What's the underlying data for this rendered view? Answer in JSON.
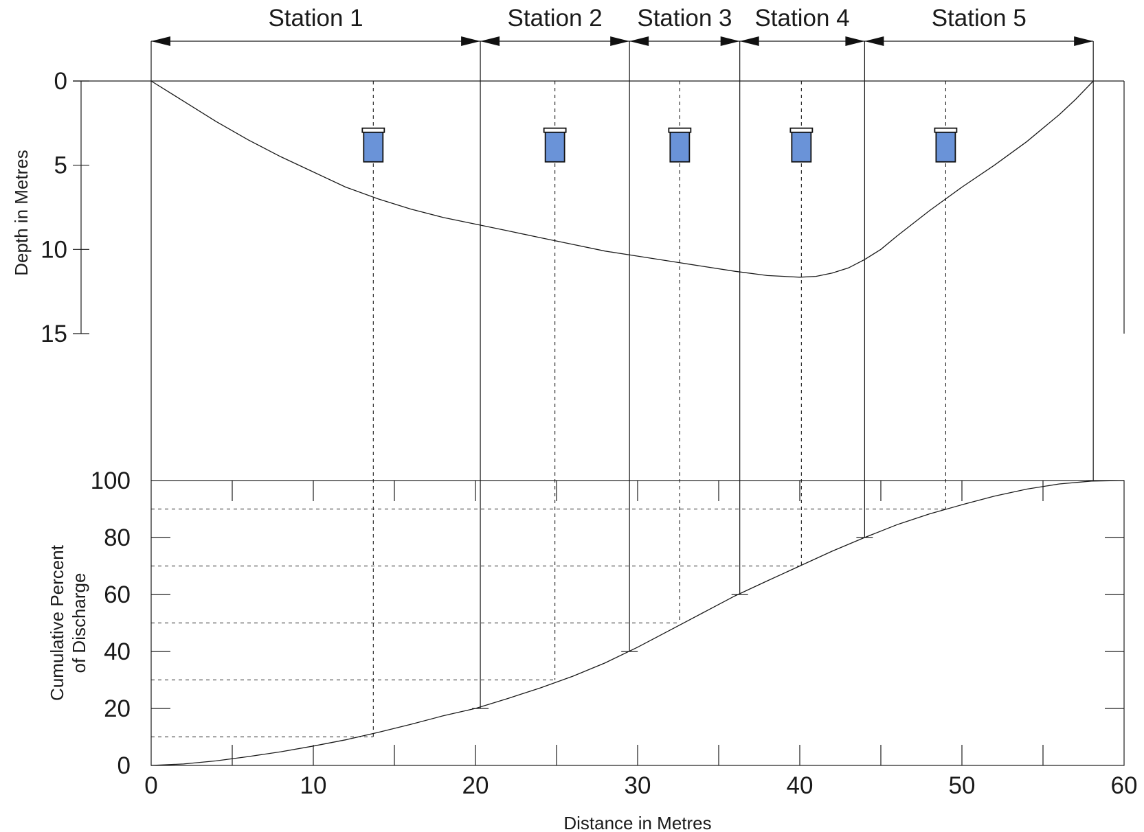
{
  "chart_data": [
    {
      "type": "line",
      "panel": "cross-section",
      "ylabel": "Depth in Metres",
      "yticks": [
        0,
        5,
        10,
        15
      ],
      "ylim": [
        0,
        15
      ],
      "y_inverted": true,
      "xlim": [
        0,
        60
      ],
      "stations": [
        {
          "label": "Station 1",
          "start": 0,
          "end": 20.3,
          "sample_x": 13.7
        },
        {
          "label": "Station 2",
          "start": 20.3,
          "end": 29.5,
          "sample_x": 24.9
        },
        {
          "label": "Station 3",
          "start": 29.5,
          "end": 36.3,
          "sample_x": 32.6
        },
        {
          "label": "Station 4",
          "start": 36.3,
          "end": 44.0,
          "sample_x": 40.1
        },
        {
          "label": "Station 5",
          "start": 44.0,
          "end": 58.1,
          "sample_x": 49.0
        }
      ],
      "sampler_depth": [
        2.8,
        4.8
      ],
      "sampler_color": "#6a93d8",
      "bed_profile": {
        "x": [
          0,
          2,
          4,
          6,
          8,
          10,
          12,
          14,
          16,
          18,
          20,
          22,
          24,
          26,
          28,
          30,
          32,
          34,
          36,
          38,
          40,
          41,
          42,
          43,
          44,
          45,
          46,
          48,
          50,
          52,
          54,
          56,
          57,
          58.1
        ],
        "depth": [
          0,
          1.2,
          2.4,
          3.5,
          4.5,
          5.4,
          6.3,
          7.0,
          7.6,
          8.1,
          8.5,
          8.9,
          9.3,
          9.7,
          10.1,
          10.4,
          10.7,
          11.0,
          11.3,
          11.55,
          11.65,
          11.6,
          11.4,
          11.1,
          10.6,
          10.0,
          9.2,
          7.7,
          6.3,
          5.0,
          3.6,
          2.0,
          1.1,
          0
        ]
      }
    },
    {
      "type": "line",
      "panel": "cumulative-discharge",
      "xlabel": "Distance in Metres",
      "ylabel_lines": [
        "Cumulative Percent",
        "of Discharge"
      ],
      "xticks": [
        0,
        10,
        20,
        30,
        40,
        50,
        60
      ],
      "yticks": [
        0,
        20,
        40,
        60,
        80,
        100
      ],
      "xlim": [
        0,
        60
      ],
      "ylim": [
        0,
        100
      ],
      "curve": {
        "x": [
          0,
          2,
          4,
          6,
          8,
          10,
          12,
          14,
          16,
          18,
          20,
          22,
          24,
          26,
          28,
          30,
          32,
          34,
          36,
          38,
          40,
          42,
          44,
          46,
          48,
          50,
          52,
          54,
          56,
          58,
          60
        ],
        "y": [
          0,
          0.5,
          1.6,
          3.1,
          4.8,
          6.8,
          9.0,
          11.6,
          14.4,
          17.4,
          20.0,
          23.5,
          27.2,
          31.3,
          36.0,
          41.5,
          47.5,
          53.5,
          59.5,
          64.8,
          70.0,
          75.2,
          80.0,
          84.5,
          88.3,
          91.5,
          94.5,
          97.0,
          98.8,
          99.8,
          100
        ]
      },
      "boundary_points": [
        {
          "x": 20.3,
          "y": 20
        },
        {
          "x": 29.5,
          "y": 40
        },
        {
          "x": 36.3,
          "y": 60
        },
        {
          "x": 44.0,
          "y": 80
        },
        {
          "x": 58.1,
          "y": 100
        }
      ],
      "sample_points": [
        {
          "x": 13.7,
          "y": 10
        },
        {
          "x": 24.9,
          "y": 30
        },
        {
          "x": 32.6,
          "y": 50
        },
        {
          "x": 40.1,
          "y": 70
        },
        {
          "x": 49.0,
          "y": 90
        }
      ]
    }
  ]
}
